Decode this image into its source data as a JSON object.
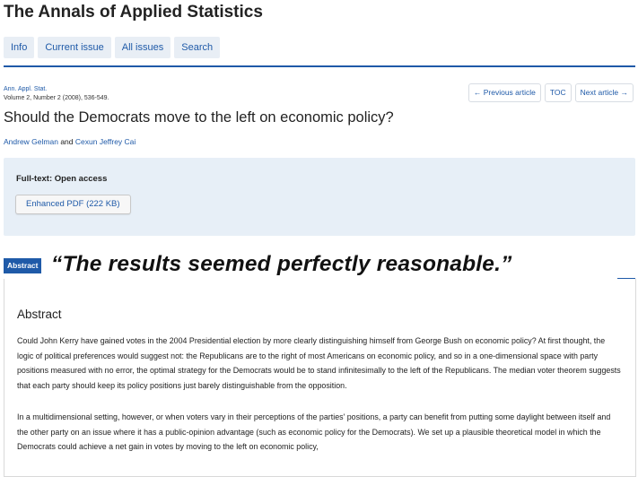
{
  "journal": {
    "title": "The Annals of Applied Statistics"
  },
  "nav": {
    "tabs": [
      "Info",
      "Current issue",
      "All issues",
      "Search"
    ]
  },
  "citation": {
    "line1": "Ann. Appl. Stat.",
    "line2": "Volume 2, Number 2 (2008), 536-549."
  },
  "article_nav": {
    "prev": "← Previous article",
    "toc": "TOC",
    "next": "Next article →"
  },
  "article": {
    "title": "Should the Democrats move to the left on economic policy?",
    "author1": "Andrew Gelman",
    "and": "and",
    "author2": "Cexun Jeffrey Cai"
  },
  "fulltext": {
    "label": "Full-text: Open access",
    "pdf_button": "Enhanced PDF (222 KB)"
  },
  "abstract": {
    "tag": "Abstract",
    "quote": "“The results seemed perfectly reasonable.”",
    "heading": "Abstract",
    "p1": "Could John Kerry have gained votes in the 2004 Presidential election by more clearly distinguishing himself from George Bush on economic policy? At first thought, the logic of political preferences would suggest not: the Republicans are to the right of most Americans on economic policy, and so in a one-dimensional space with party positions measured with no error, the optimal strategy for the Democrats would be to stand infinitesimally to the left of the Republicans. The median voter theorem suggests that each party should keep its policy positions just barely distinguishable from the opposition.",
    "p2": "In a multidimensional setting, however, or when voters vary in their perceptions of the parties' positions, a party can benefit from putting some daylight between itself and the other party on an issue where it has a public-opinion advantage (such as economic policy for the Democrats). We set up a plausible theoretical model in which the Democrats could achieve a net gain in votes by moving to the left on economic policy,"
  },
  "colors": {
    "accent": "#1f5aa8",
    "panel_bg": "#e7eff7",
    "tab_bg": "#e8eef5"
  }
}
